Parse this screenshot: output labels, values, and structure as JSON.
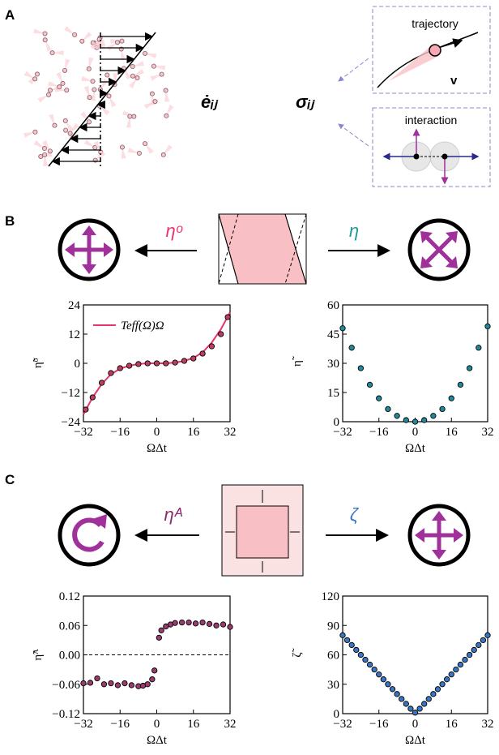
{
  "panel_labels": [
    "A",
    "B",
    "C"
  ],
  "panel_a": {
    "strain_rate": "ėᵢⱼ",
    "stress": "σᵢⱼ",
    "trajectory": "trajectory",
    "velocity": "v",
    "interaction": "interaction"
  },
  "panel_b": {
    "odd_label": "ηᵒ",
    "shear_label": "η"
  },
  "panel_c": {
    "rot_label": "ηᴬ",
    "bulk_label": "ζ"
  },
  "chart_data": [
    {
      "type": "scatter",
      "xlabel": "ΩΔt",
      "ylabel": "η̃ᵒ",
      "xlim": [
        -32,
        32
      ],
      "ylim": [
        -24,
        24
      ],
      "xticks": [
        {
          "value": -32,
          "label": "−32"
        },
        {
          "value": -16,
          "label": "−16"
        },
        0,
        16,
        32
      ],
      "yticks": [
        {
          "value": -24,
          "label": "−24"
        },
        {
          "value": -12,
          "label": "−12"
        },
        0,
        12,
        24
      ],
      "series": [
        {
          "name": "Teff(Ω)Ω",
          "type": "line",
          "color": "#e8336d",
          "x": [
            -32,
            -28,
            -24,
            -20,
            -16,
            -12,
            -8,
            -4,
            0,
            4,
            8,
            12,
            16,
            20,
            24,
            28,
            32
          ],
          "values": [
            -21,
            -14,
            -8.5,
            -4.5,
            -2.2,
            -1,
            -0.3,
            0,
            0,
            0,
            0.3,
            1,
            2.2,
            4.5,
            8.5,
            14,
            21
          ]
        },
        {
          "type": "scatter",
          "color": "#b8405e",
          "x": [
            -31,
            -28,
            -24,
            -20,
            -16,
            -12,
            -8,
            -4,
            0,
            4,
            8,
            12,
            16,
            20,
            24,
            28,
            31
          ],
          "values": [
            -19,
            -14,
            -8,
            -4,
            -2,
            -1,
            -0.3,
            0,
            0,
            0,
            0.3,
            1,
            2,
            4,
            7,
            12,
            19
          ]
        }
      ]
    },
    {
      "type": "scatter",
      "xlabel": "ΩΔt",
      "ylabel": "η̃",
      "xlim": [
        -32,
        32
      ],
      "ylim": [
        0,
        60
      ],
      "xticks": [
        {
          "value": -32,
          "label": "−32"
        },
        {
          "value": -16,
          "label": "−16"
        },
        0,
        16,
        32
      ],
      "yticks": [
        0,
        15,
        30,
        45,
        60
      ],
      "series": [
        {
          "type": "scatter",
          "color": "#1f8a9a",
          "x": [
            -32,
            -28,
            -24,
            -20,
            -16,
            -12,
            -8,
            -4,
            0,
            4,
            8,
            12,
            16,
            20,
            24,
            28,
            32
          ],
          "values": [
            48,
            38,
            27.5,
            19,
            12,
            6.5,
            3,
            0.8,
            0,
            0.8,
            3,
            6.5,
            12,
            19,
            27.5,
            38,
            49
          ]
        }
      ]
    },
    {
      "type": "scatter",
      "xlabel": "ΩΔt",
      "ylabel": "η̃ᴬ",
      "xlim": [
        -32,
        32
      ],
      "ylim": [
        -0.12,
        0.12
      ],
      "hline": 0,
      "xticks": [
        {
          "value": -32,
          "label": "−32"
        },
        {
          "value": -16,
          "label": "−16"
        },
        0,
        16,
        32
      ],
      "yticks": [
        {
          "value": -0.12,
          "label": "−0.12"
        },
        {
          "value": -0.06,
          "label": "−0.06"
        },
        {
          "value": 0,
          "label": "0.00"
        },
        0.06,
        0.12
      ],
      "series": [
        {
          "type": "scatter",
          "color": "#9b3b6e",
          "x": [
            -32,
            -29,
            -26,
            -23,
            -20,
            -17,
            -14,
            -11,
            -8,
            -6,
            -4,
            -2,
            -1,
            1,
            2,
            4,
            6,
            8,
            11,
            14,
            17,
            20,
            23,
            26,
            29,
            32
          ],
          "values": [
            -0.058,
            -0.057,
            -0.048,
            -0.06,
            -0.058,
            -0.062,
            -0.058,
            -0.062,
            -0.064,
            -0.063,
            -0.06,
            -0.05,
            -0.032,
            0.035,
            0.05,
            0.058,
            0.062,
            0.065,
            0.066,
            0.066,
            0.064,
            0.066,
            0.063,
            0.06,
            0.062,
            0.057
          ]
        }
      ]
    },
    {
      "type": "scatter",
      "xlabel": "ΩΔt",
      "ylabel": "ζ̃",
      "xlim": [
        -32,
        32
      ],
      "ylim": [
        0,
        120
      ],
      "xticks": [
        {
          "value": -32,
          "label": "−32"
        },
        {
          "value": -16,
          "label": "−16"
        },
        0,
        16,
        32
      ],
      "yticks": [
        0,
        30,
        60,
        90,
        120
      ],
      "series": [
        {
          "type": "scatter",
          "color": "#3a75c4",
          "x": [
            -32,
            -30,
            -28,
            -26,
            -24,
            -22,
            -20,
            -18,
            -16,
            -14,
            -12,
            -10,
            -8,
            -6,
            -4,
            -2,
            0,
            2,
            4,
            6,
            8,
            10,
            12,
            14,
            16,
            18,
            20,
            22,
            24,
            26,
            28,
            30,
            32
          ],
          "values": [
            80,
            75,
            70,
            65,
            60,
            55,
            50,
            45,
            40,
            35,
            30,
            25,
            20,
            15,
            10,
            5,
            1,
            5,
            10,
            15,
            20,
            25,
            30,
            35,
            40,
            45,
            50,
            55,
            60,
            65,
            70,
            75,
            80
          ]
        }
      ]
    }
  ]
}
